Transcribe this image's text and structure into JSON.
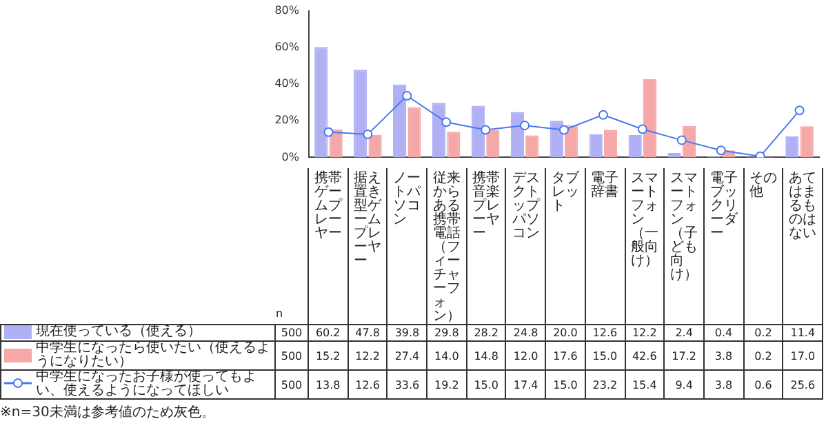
{
  "chart_data": {
    "type": "bar",
    "categories": [
      "携帯ゲームプレーヤー",
      "据え置き型ゲームプレーヤー",
      "ノートパソコン",
      "従来からある携帯電話（フィーチャーフォン）",
      "携帯音楽プレーヤー",
      "デスクトップパソコン",
      "タブレット",
      "電子辞書",
      "スマートフォン（一般向け）",
      "スマートフォン（子ども向け）",
      "電子ブックリーダー",
      "その他",
      "あてはまるものはない"
    ],
    "series": [
      {
        "name": "現在使っている（使える）",
        "color": "#b0b0f4",
        "values": [
          60.2,
          47.8,
          39.8,
          29.8,
          28.2,
          24.8,
          20.0,
          12.6,
          12.2,
          2.4,
          0.4,
          0.2,
          11.4
        ],
        "value_labels": [
          "60.2",
          "47.8",
          "39.8",
          "29.8",
          "28.2",
          "24.8",
          "20.0",
          "12.6",
          "12.2",
          "2.4",
          "0.4",
          "0.2",
          "11.4"
        ]
      },
      {
        "name": "中学生になったら使いたい（使えるようになりたい）",
        "color": "#f4a8a8",
        "values": [
          15.2,
          12.2,
          27.4,
          14.0,
          14.8,
          12.0,
          17.6,
          15.0,
          42.6,
          17.2,
          3.8,
          0.2,
          17.0
        ],
        "value_labels": [
          "15.2",
          "12.2",
          "27.4",
          "14.0",
          "14.8",
          "12.0",
          "17.6",
          "15.0",
          "42.6",
          "17.2",
          "3.8",
          "0.2",
          "17.0"
        ]
      },
      {
        "name": "中学生になったお子様が使ってもよい、使えるようになってほしい",
        "color": "#4a78f0",
        "type": "line",
        "values": [
          13.8,
          12.6,
          33.6,
          19.2,
          15.0,
          17.4,
          15.0,
          23.2,
          15.4,
          9.4,
          3.8,
          0.6,
          25.6
        ],
        "value_labels": [
          "13.8",
          "12.6",
          "33.6",
          "19.2",
          "15.0",
          "17.4",
          "15.0",
          "23.2",
          "15.4",
          "9.4",
          "3.8",
          "0.6",
          "25.6"
        ]
      }
    ],
    "ylim": [
      0,
      80
    ],
    "yticks": [
      {
        "value": 0,
        "label": "0%"
      },
      {
        "value": 20,
        "label": "20%"
      },
      {
        "value": 40,
        "label": "40%"
      },
      {
        "value": 60,
        "label": "60%"
      },
      {
        "value": 80,
        "label": "80%"
      }
    ],
    "marker": "circle",
    "line_style": "solid",
    "legend": "bottom left",
    "annotations": [
      "n",
      "500",
      "※n=30未満は参考値のため灰色。"
    ]
  }
}
